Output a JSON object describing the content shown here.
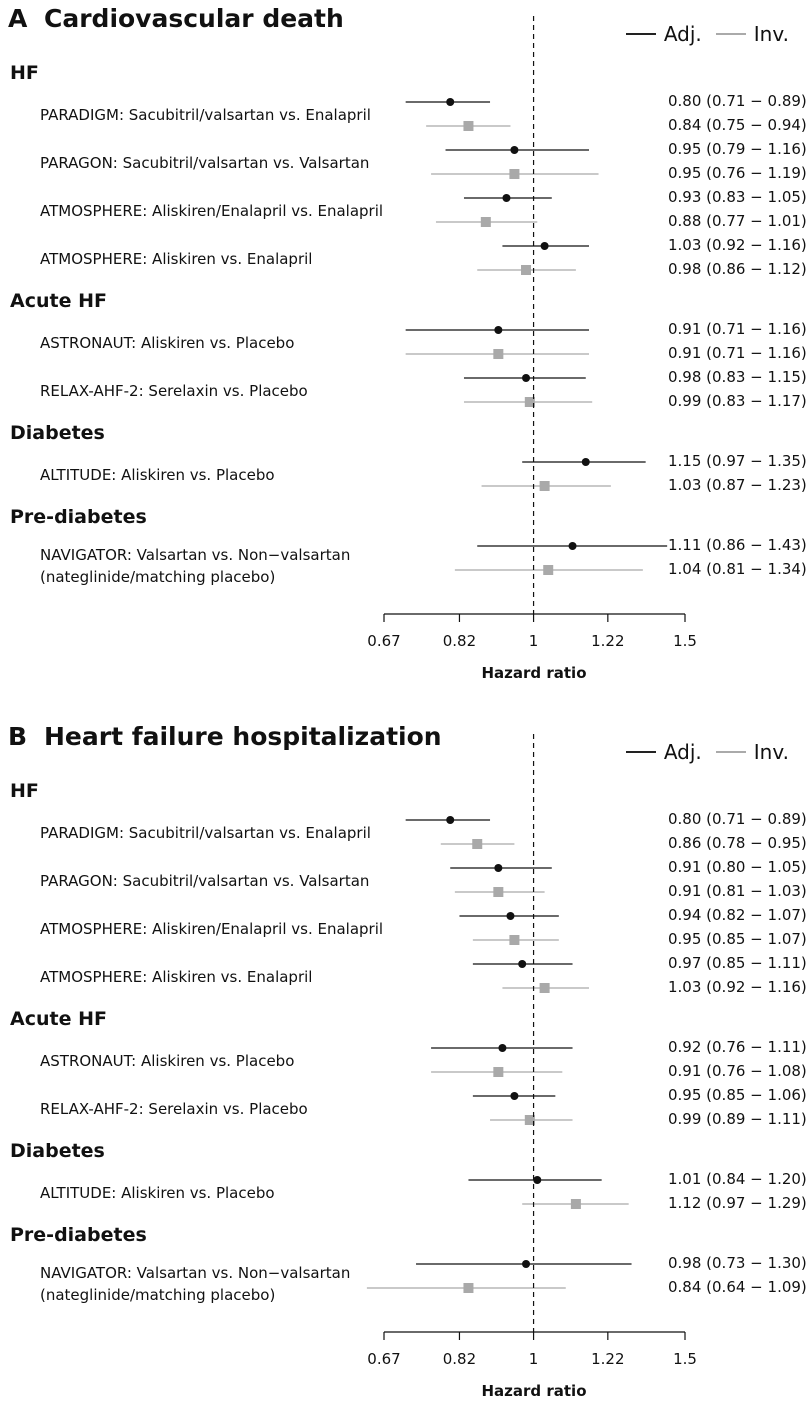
{
  "chart_data": [
    {
      "type": "forest",
      "panel_letter": "A",
      "title": "Cardiovascular death",
      "legend": [
        "Adj.",
        "Inv."
      ],
      "xlabel": "Hazard ratio",
      "x_ticks": [
        "0.67",
        "0.82",
        "1",
        "1.22",
        "1.5"
      ],
      "xlim": [
        0.67,
        1.5
      ],
      "log_scale": true,
      "reference_line": 1,
      "groups": [
        {
          "label": "HF",
          "studies": [
            {
              "label": "PARADIGM: Sacubitril/valsartan vs. Enalapril",
              "adj": {
                "hr": 0.8,
                "lo": 0.71,
                "hi": 0.89,
                "text": "0.80 (0.71 − 0.89)"
              },
              "inv": {
                "hr": 0.84,
                "lo": 0.75,
                "hi": 0.94,
                "text": "0.84 (0.75 − 0.94)"
              }
            },
            {
              "label": "PARAGON: Sacubitril/valsartan vs. Valsartan",
              "adj": {
                "hr": 0.95,
                "lo": 0.79,
                "hi": 1.16,
                "text": "0.95 (0.79 − 1.16)"
              },
              "inv": {
                "hr": 0.95,
                "lo": 0.76,
                "hi": 1.19,
                "text": "0.95 (0.76 − 1.19)"
              }
            },
            {
              "label": "ATMOSPHERE: Aliskiren/Enalapril vs. Enalapril",
              "adj": {
                "hr": 0.93,
                "lo": 0.83,
                "hi": 1.05,
                "text": "0.93 (0.83 − 1.05)"
              },
              "inv": {
                "hr": 0.88,
                "lo": 0.77,
                "hi": 1.01,
                "text": "0.88 (0.77 − 1.01)"
              }
            },
            {
              "label": "ATMOSPHERE: Aliskiren vs. Enalapril",
              "adj": {
                "hr": 1.03,
                "lo": 0.92,
                "hi": 1.16,
                "text": "1.03 (0.92 − 1.16)"
              },
              "inv": {
                "hr": 0.98,
                "lo": 0.86,
                "hi": 1.12,
                "text": "0.98 (0.86 − 1.12)"
              }
            }
          ]
        },
        {
          "label": "Acute HF",
          "studies": [
            {
              "label": "ASTRONAUT: Aliskiren vs. Placebo",
              "adj": {
                "hr": 0.91,
                "lo": 0.71,
                "hi": 1.16,
                "text": "0.91 (0.71 − 1.16)"
              },
              "inv": {
                "hr": 0.91,
                "lo": 0.71,
                "hi": 1.16,
                "text": "0.91 (0.71 − 1.16)"
              }
            },
            {
              "label": "RELAX-AHF-2: Serelaxin vs. Placebo",
              "adj": {
                "hr": 0.98,
                "lo": 0.83,
                "hi": 1.15,
                "text": "0.98 (0.83 − 1.15)"
              },
              "inv": {
                "hr": 0.99,
                "lo": 0.83,
                "hi": 1.17,
                "text": "0.99 (0.83 − 1.17)"
              }
            }
          ]
        },
        {
          "label": "Diabetes",
          "studies": [
            {
              "label": "ALTITUDE: Aliskiren vs. Placebo",
              "adj": {
                "hr": 1.15,
                "lo": 0.97,
                "hi": 1.35,
                "text": "1.15 (0.97 − 1.35)"
              },
              "inv": {
                "hr": 1.03,
                "lo": 0.87,
                "hi": 1.23,
                "text": "1.03 (0.87 − 1.23)"
              }
            }
          ]
        },
        {
          "label": "Pre-diabetes",
          "studies": [
            {
              "label": "NAVIGATOR: Valsartan vs. Non−valsartan\n(nateglinide/matching placebo)",
              "adj": {
                "hr": 1.11,
                "lo": 0.86,
                "hi": 1.43,
                "text": "1.11 (0.86 − 1.43)"
              },
              "inv": {
                "hr": 1.04,
                "lo": 0.81,
                "hi": 1.34,
                "text": "1.04 (0.81 − 1.34)"
              }
            }
          ]
        }
      ]
    },
    {
      "type": "forest",
      "panel_letter": "B",
      "title": "Heart failure hospitalization",
      "legend": [
        "Adj.",
        "Inv."
      ],
      "xlabel": "Hazard ratio",
      "x_ticks": [
        "0.67",
        "0.82",
        "1",
        "1.22",
        "1.5"
      ],
      "xlim": [
        0.67,
        1.5
      ],
      "log_scale": true,
      "reference_line": 1,
      "groups": [
        {
          "label": "HF",
          "studies": [
            {
              "label": "PARADIGM: Sacubitril/valsartan vs. Enalapril",
              "adj": {
                "hr": 0.8,
                "lo": 0.71,
                "hi": 0.89,
                "text": "0.80 (0.71 − 0.89)"
              },
              "inv": {
                "hr": 0.86,
                "lo": 0.78,
                "hi": 0.95,
                "text": "0.86 (0.78 − 0.95)"
              }
            },
            {
              "label": "PARAGON: Sacubitril/valsartan vs. Valsartan",
              "adj": {
                "hr": 0.91,
                "lo": 0.8,
                "hi": 1.05,
                "text": "0.91 (0.80 − 1.05)"
              },
              "inv": {
                "hr": 0.91,
                "lo": 0.81,
                "hi": 1.03,
                "text": "0.91 (0.81 − 1.03)"
              }
            },
            {
              "label": "ATMOSPHERE: Aliskiren/Enalapril vs. Enalapril",
              "adj": {
                "hr": 0.94,
                "lo": 0.82,
                "hi": 1.07,
                "text": "0.94 (0.82 − 1.07)"
              },
              "inv": {
                "hr": 0.95,
                "lo": 0.85,
                "hi": 1.07,
                "text": "0.95 (0.85 − 1.07)"
              }
            },
            {
              "label": "ATMOSPHERE: Aliskiren vs. Enalapril",
              "adj": {
                "hr": 0.97,
                "lo": 0.85,
                "hi": 1.11,
                "text": "0.97 (0.85 − 1.11)"
              },
              "inv": {
                "hr": 1.03,
                "lo": 0.92,
                "hi": 1.16,
                "text": "1.03 (0.92 − 1.16)"
              }
            }
          ]
        },
        {
          "label": "Acute HF",
          "studies": [
            {
              "label": "ASTRONAUT: Aliskiren vs. Placebo",
              "adj": {
                "hr": 0.92,
                "lo": 0.76,
                "hi": 1.11,
                "text": "0.92 (0.76 − 1.11)"
              },
              "inv": {
                "hr": 0.91,
                "lo": 0.76,
                "hi": 1.08,
                "text": "0.91 (0.76 − 1.08)"
              }
            },
            {
              "label": "RELAX-AHF-2: Serelaxin vs. Placebo",
              "adj": {
                "hr": 0.95,
                "lo": 0.85,
                "hi": 1.06,
                "text": "0.95 (0.85 − 1.06)"
              },
              "inv": {
                "hr": 0.99,
                "lo": 0.89,
                "hi": 1.11,
                "text": "0.99 (0.89 − 1.11)"
              }
            }
          ]
        },
        {
          "label": "Diabetes",
          "studies": [
            {
              "label": "ALTITUDE: Aliskiren vs. Placebo",
              "adj": {
                "hr": 1.01,
                "lo": 0.84,
                "hi": 1.2,
                "text": "1.01 (0.84 − 1.20)"
              },
              "inv": {
                "hr": 1.12,
                "lo": 0.97,
                "hi": 1.29,
                "text": "1.12 (0.97 − 1.29)"
              }
            }
          ]
        },
        {
          "label": "Pre-diabetes",
          "studies": [
            {
              "label": "NAVIGATOR: Valsartan vs. Non−valsartan\n(nateglinide/matching placebo)",
              "adj": {
                "hr": 0.98,
                "lo": 0.73,
                "hi": 1.3,
                "text": "0.98 (0.73 − 1.30)"
              },
              "inv": {
                "hr": 0.84,
                "lo": 0.64,
                "hi": 1.09,
                "text": "0.84 (0.64 − 1.09)"
              }
            }
          ]
        }
      ]
    }
  ],
  "colors": {
    "adjusted": "#111111",
    "inverse_variance": "#a9a9a9",
    "axis": "#111111"
  },
  "marker_shapes": {
    "adjusted": "circle",
    "inverse_variance": "square"
  }
}
